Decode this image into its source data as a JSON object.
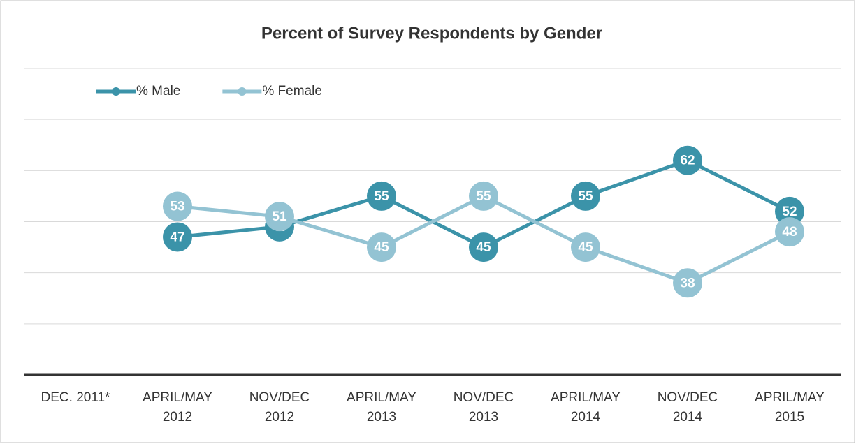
{
  "chart_data": {
    "type": "line",
    "title": "Percent of Survey Respondents by Gender",
    "categories": [
      "DEC. 2011*",
      "APRIL/MAY\n2012",
      "NOV/DEC\n2012",
      "APRIL/MAY\n2013",
      "NOV/DEC\n2013",
      "APRIL/MAY\n2014",
      "NOV/DEC\n2014",
      "APRIL/MAY\n2015"
    ],
    "series": [
      {
        "name": "% Male",
        "color": "#3b93a9",
        "values": [
          null,
          47,
          49,
          55,
          45,
          55,
          62,
          52
        ]
      },
      {
        "name": "% Female",
        "color": "#93c3d3",
        "values": [
          null,
          53,
          51,
          45,
          55,
          45,
          38,
          48
        ]
      }
    ],
    "ylim": [
      20,
      80
    ],
    "yticks": [
      20,
      30,
      40,
      50,
      60,
      70,
      80
    ],
    "grid": true,
    "legend": "top-left",
    "data_labels": true
  }
}
